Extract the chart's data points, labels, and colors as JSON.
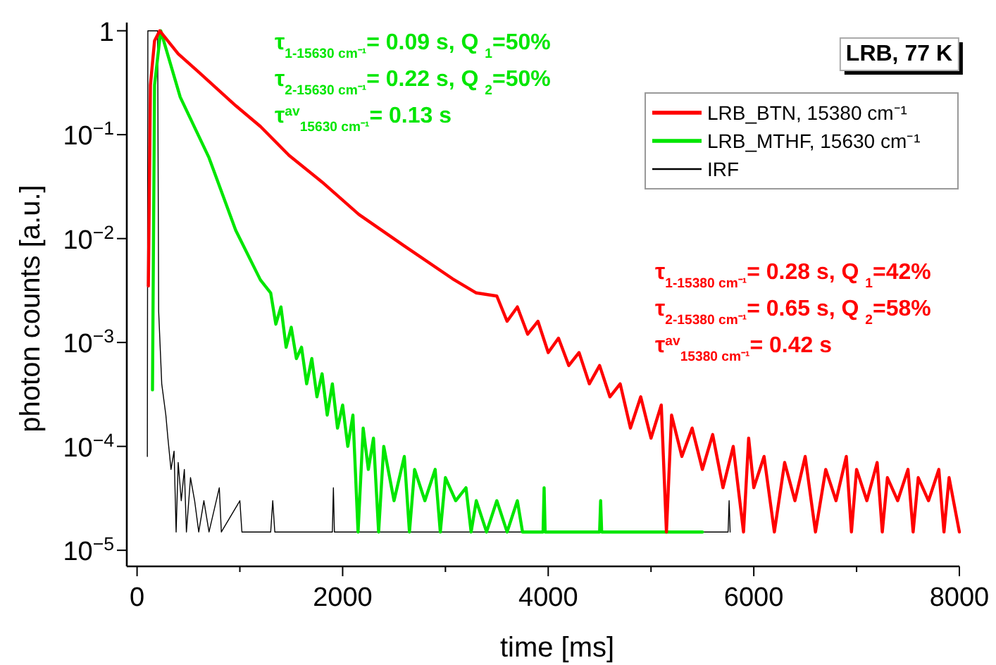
{
  "chart_data": {
    "type": "line",
    "xlabel": "time [ms]",
    "ylabel": "photon counts [a.u.]",
    "log": "y",
    "legend": "top right",
    "line_style": "solid",
    "marker": "none",
    "xlim": [
      -100,
      8000
    ],
    "xticks": [
      0,
      {
        "value": 1000,
        "label": null
      },
      2000,
      {
        "value": 3000,
        "label": null
      },
      4000,
      {
        "value": 5000,
        "label": null
      },
      6000,
      {
        "value": 7000,
        "label": null
      },
      8000
    ],
    "ylim": [
      7e-06,
      1.2
    ],
    "yticks": [
      {
        "value": 1e-05,
        "label": "10$^{−5}$"
      },
      {
        "value": 0.0001,
        "label": "10$^{−4}$"
      },
      {
        "value": 0.001,
        "label": "10$^{−3}$"
      },
      {
        "value": 0.01,
        "label": "10$^{−2}$"
      },
      {
        "value": 0.1,
        "label": "10$^{−1}$"
      },
      1
    ],
    "series": [
      {
        "name": "LRB_BTN, 15380 cm⁻¹",
        "color": "#ff0000",
        "x": [
          110,
          130,
          170,
          220,
          400,
          600,
          960,
          1200,
          1480,
          1800,
          2160,
          2600,
          3070,
          3300,
          3500,
          3600,
          3700,
          3800,
          3900,
          4000,
          4100,
          4200,
          4300,
          4400,
          4500,
          4600,
          4700,
          4800,
          4900,
          5000,
          5100,
          5150,
          5200,
          5300,
          5400,
          5500,
          5600,
          5700,
          5800,
          5900,
          5950,
          6000,
          6100,
          6200,
          6300,
          6400,
          6500,
          6600,
          6700,
          6800,
          6900,
          6950,
          7000,
          7100,
          7200,
          7250,
          7300,
          7400,
          7500,
          7550,
          7600,
          7700,
          7800,
          7850,
          7900,
          8000
        ],
        "values": [
          0.0035,
          0.3,
          0.8,
          1,
          0.6,
          0.4,
          0.19,
          0.12,
          0.063,
          0.035,
          0.017,
          0.0085,
          0.0041,
          0.003,
          0.0028,
          0.0016,
          0.0022,
          0.0012,
          0.0016,
          0.0008,
          0.0011,
          0.0006,
          0.0008,
          0.0004,
          0.0006,
          0.0003,
          0.0004,
          0.00015,
          0.0003,
          0.00012,
          0.00025,
          1.5e-05,
          0.0002,
          8e-05,
          0.00015,
          6e-05,
          0.00013,
          4e-05,
          0.0001,
          1.5e-05,
          0.00012,
          4e-05,
          8e-05,
          1.5e-05,
          7e-05,
          3e-05,
          8e-05,
          1.5e-05,
          6e-05,
          3e-05,
          8e-05,
          1.5e-05,
          6e-05,
          3e-05,
          7e-05,
          1.5e-05,
          5e-05,
          3e-05,
          6e-05,
          1.5e-05,
          5e-05,
          3e-05,
          6e-05,
          1.5e-05,
          5e-05,
          1.5e-05
        ]
      },
      {
        "name": "LRB_MTHF, 15630 cm⁻¹",
        "color": "#00e600",
        "x": [
          150,
          170,
          230,
          420,
          700,
          960,
          1200,
          1300,
          1350,
          1400,
          1450,
          1500,
          1550,
          1600,
          1650,
          1700,
          1750,
          1800,
          1850,
          1900,
          1950,
          2000,
          2050,
          2100,
          2150,
          2200,
          2250,
          2300,
          2350,
          2400,
          2500,
          2600,
          2650,
          2700,
          2800,
          2900,
          2950,
          3000,
          3100,
          3200,
          3250,
          3300,
          3400,
          3500,
          3600,
          3700,
          3750,
          3950,
          3960,
          3970,
          4500,
          4510,
          4520,
          5500
        ],
        "values": [
          0.00035,
          0.3,
          1,
          0.23,
          0.06,
          0.012,
          0.004,
          0.003,
          0.0015,
          0.0022,
          0.0009,
          0.0014,
          0.0007,
          0.0009,
          0.0004,
          0.0007,
          0.0003,
          0.0005,
          0.0002,
          0.0004,
          0.00015,
          0.00025,
          0.0001,
          0.0002,
          1.5e-05,
          0.00015,
          6e-05,
          0.00012,
          1.5e-05,
          0.0001,
          3e-05,
          8e-05,
          1.5e-05,
          6e-05,
          3e-05,
          6e-05,
          1.5e-05,
          5e-05,
          3e-05,
          4e-05,
          1.5e-05,
          3e-05,
          1.5e-05,
          3e-05,
          1.5e-05,
          3e-05,
          1.5e-05,
          1.5e-05,
          4e-05,
          1.5e-05,
          1.5e-05,
          3e-05,
          1.5e-05,
          1.5e-05
        ]
      },
      {
        "name": "IRF",
        "color": "#000000",
        "x": [
          100,
          105,
          200,
          210,
          240,
          280,
          300,
          330,
          360,
          380,
          400,
          430,
          460,
          480,
          520,
          560,
          600,
          650,
          700,
          800,
          820,
          1000,
          1020,
          1300,
          1320,
          1340,
          1900,
          1910,
          1920,
          5750,
          5760,
          5770
        ],
        "values": [
          8e-05,
          1,
          1,
          0.002,
          0.0004,
          0.0002,
          0.00012,
          6e-05,
          9e-05,
          1.5e-05,
          7e-05,
          3e-05,
          6e-05,
          1.5e-05,
          5e-05,
          3e-05,
          1.5e-05,
          3e-05,
          1.5e-05,
          4e-05,
          1.5e-05,
          3e-05,
          1.5e-05,
          1.5e-05,
          3e-05,
          1.5e-05,
          1.5e-05,
          4e-05,
          1.5e-05,
          1.5e-05,
          3e-05,
          1.5e-05
        ]
      }
    ],
    "annotations": [
      "τ$_{1-15630 cm⁻¹}$= 0.09 s, Q $_{1}$=50%",
      "τ$_{2-15630 cm⁻¹}$= 0.22 s, Q $_{2}$=50%",
      "τ$^{av}$$_{15630 cm⁻¹}$= 0.13 s",
      "τ$_{1-15380 cm⁻¹}$= 0.28 s, Q $_{1}$=42%",
      "τ$_{2-15380 cm⁻¹}$= 0.65 s, Q $_{2}$=58%",
      "τ$^{av}$$_{15380 cm⁻¹}$= 0.42 s",
      "LRB, 77 K"
    ]
  }
}
